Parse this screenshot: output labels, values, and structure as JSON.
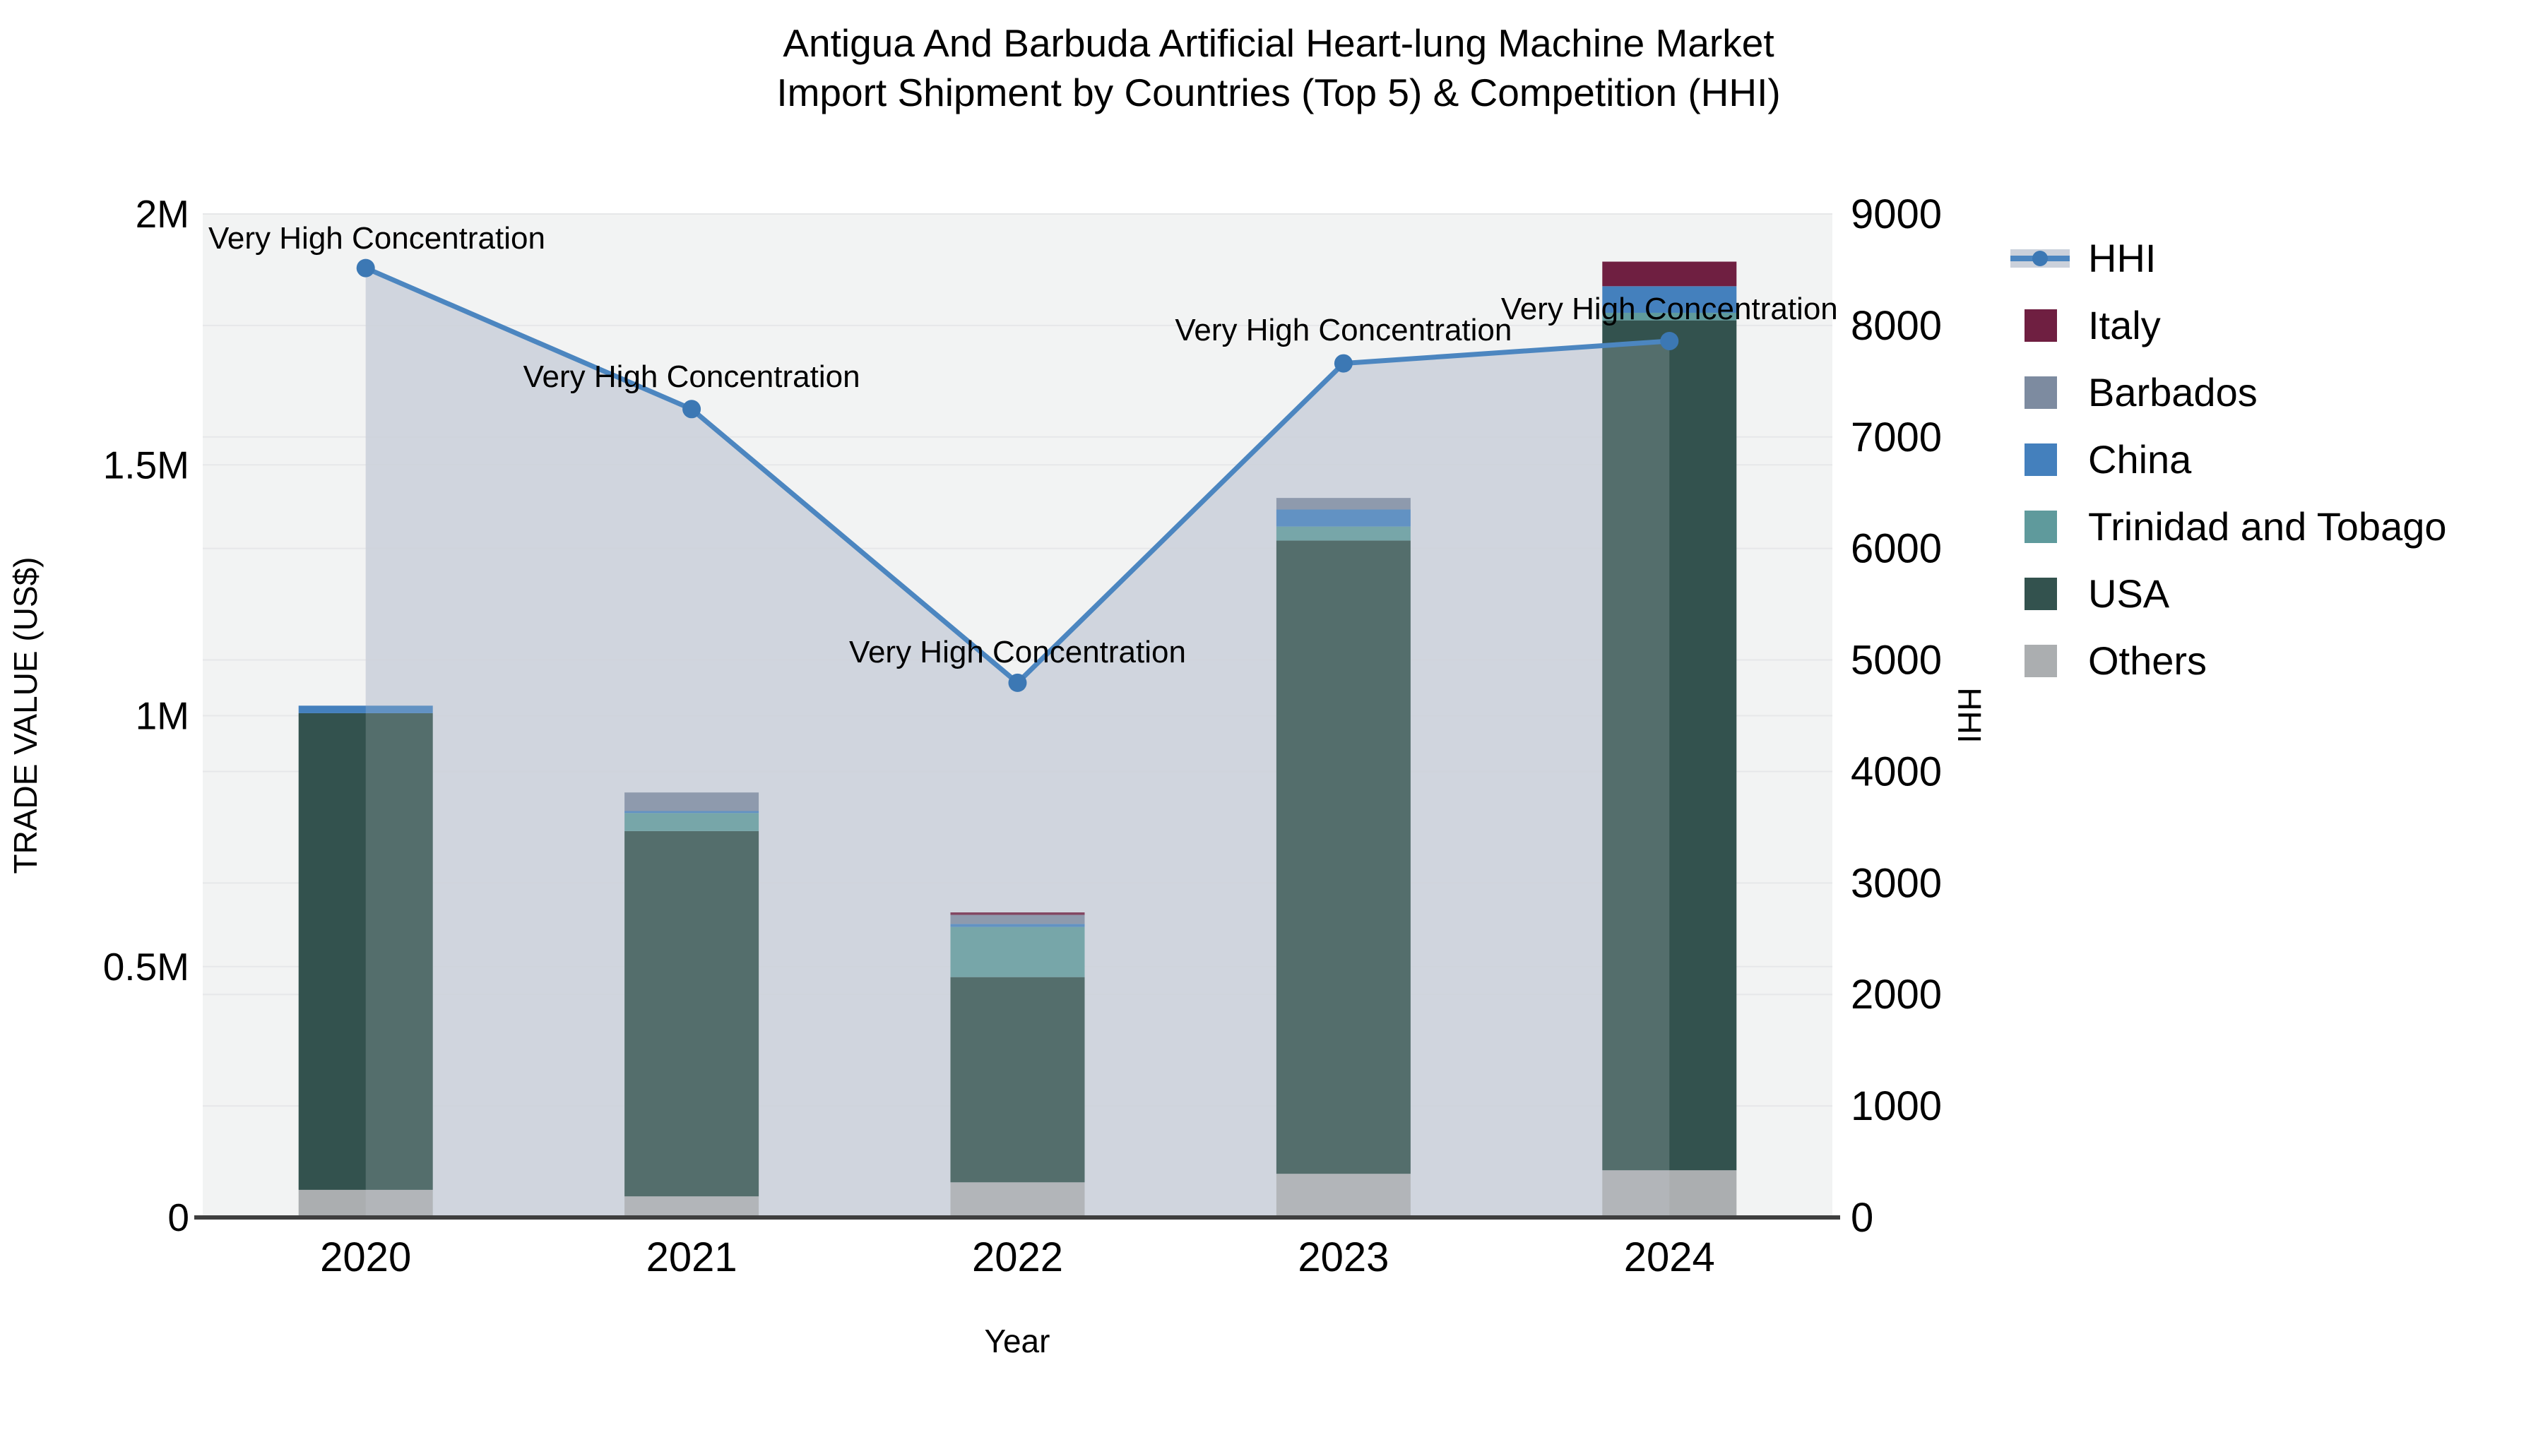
{
  "title": {
    "line1": "Antigua And Barbuda Artificial Heart-lung Machine Market",
    "line2": "Import Shipment by Countries (Top 5) & Competition (HHI)"
  },
  "axes": {
    "x_label": "Year",
    "left_label": "TRADE VALUE (US$)",
    "right_label": "HHI",
    "left_ticks": [
      {
        "value": 0,
        "label": "0"
      },
      {
        "value": 500000,
        "label": "0.5M"
      },
      {
        "value": 1000000,
        "label": "1M"
      },
      {
        "value": 1500000,
        "label": "1.5M"
      },
      {
        "value": 2000000,
        "label": "2M"
      }
    ],
    "right_ticks": [
      {
        "value": 0,
        "label": "0"
      },
      {
        "value": 1000,
        "label": "1000"
      },
      {
        "value": 2000,
        "label": "2000"
      },
      {
        "value": 3000,
        "label": "3000"
      },
      {
        "value": 4000,
        "label": "4000"
      },
      {
        "value": 5000,
        "label": "5000"
      },
      {
        "value": 6000,
        "label": "6000"
      },
      {
        "value": 7000,
        "label": "7000"
      },
      {
        "value": 8000,
        "label": "8000"
      },
      {
        "value": 9000,
        "label": "9000"
      }
    ]
  },
  "legend": [
    {
      "label": "HHI",
      "color": "#4c86c0",
      "type": "line"
    },
    {
      "label": "Italy",
      "color": "#6f1f41",
      "type": "square"
    },
    {
      "label": "Barbados",
      "color": "#7d8ba0",
      "type": "square"
    },
    {
      "label": "China",
      "color": "#4480bd",
      "type": "square"
    },
    {
      "label": "Trinidad and Tobago",
      "color": "#5f9a9c",
      "type": "square"
    },
    {
      "label": "USA",
      "color": "#33524e",
      "type": "square"
    },
    {
      "label": "Others",
      "color": "#abaeb0",
      "type": "square"
    }
  ],
  "chart_data": {
    "type": "combo",
    "subtypes": [
      "stacked-bar",
      "line-area"
    ],
    "title": "Antigua And Barbuda Artificial Heart-lung Machine Market Import Shipment by Countries (Top 5) & Competition (HHI)",
    "xlabel": "Year",
    "ylabel_left": "TRADE VALUE (US$)",
    "ylabel_right": "HHI",
    "categories": [
      "2020",
      "2021",
      "2022",
      "2023",
      "2024"
    ],
    "ylim_left": [
      0,
      2000000
    ],
    "ylim_right": [
      0,
      9000
    ],
    "grid": true,
    "legend_position": "right",
    "bar_series_bottom_to_top": [
      {
        "name": "Others",
        "color": "#abaeb0",
        "values": [
          55000,
          42000,
          70000,
          87000,
          94000
        ]
      },
      {
        "name": "USA",
        "color": "#33524e",
        "values": [
          950000,
          728000,
          409000,
          1262000,
          1694000
        ]
      },
      {
        "name": "Trinidad and Tobago",
        "color": "#5f9a9c",
        "values": [
          0,
          36000,
          100000,
          28000,
          15000
        ]
      },
      {
        "name": "China",
        "color": "#4480bd",
        "values": [
          15000,
          4000,
          6000,
          34000,
          53000
        ]
      },
      {
        "name": "Barbados",
        "color": "#7d8ba0",
        "values": [
          0,
          37000,
          18000,
          23000,
          0
        ]
      },
      {
        "name": "Italy",
        "color": "#6f1f41",
        "values": [
          0,
          0,
          5000,
          0,
          49000
        ]
      }
    ],
    "bar_totals": [
      1020000,
      847000,
      608000,
      1434000,
      1905000
    ],
    "line_series": {
      "name": "HHI",
      "values": [
        8515,
        7250,
        4795,
        7660,
        7860
      ],
      "color": "#4c86c0",
      "marker_color": "#3c78b4",
      "area_color": "#cbd1db"
    },
    "annotations": [
      {
        "category": "2020",
        "text": "Very High Concentration"
      },
      {
        "category": "2021",
        "text": "Very High Concentration"
      },
      {
        "category": "2022",
        "text": "Very High Concentration"
      },
      {
        "category": "2023",
        "text": "Very High Concentration"
      },
      {
        "category": "2024",
        "text": "Very High Concentration"
      }
    ]
  },
  "style": {
    "plot_bg": "#f2f3f3",
    "grid_color": "#e6e7e9",
    "axis_line_color": "#3f3f3f"
  }
}
